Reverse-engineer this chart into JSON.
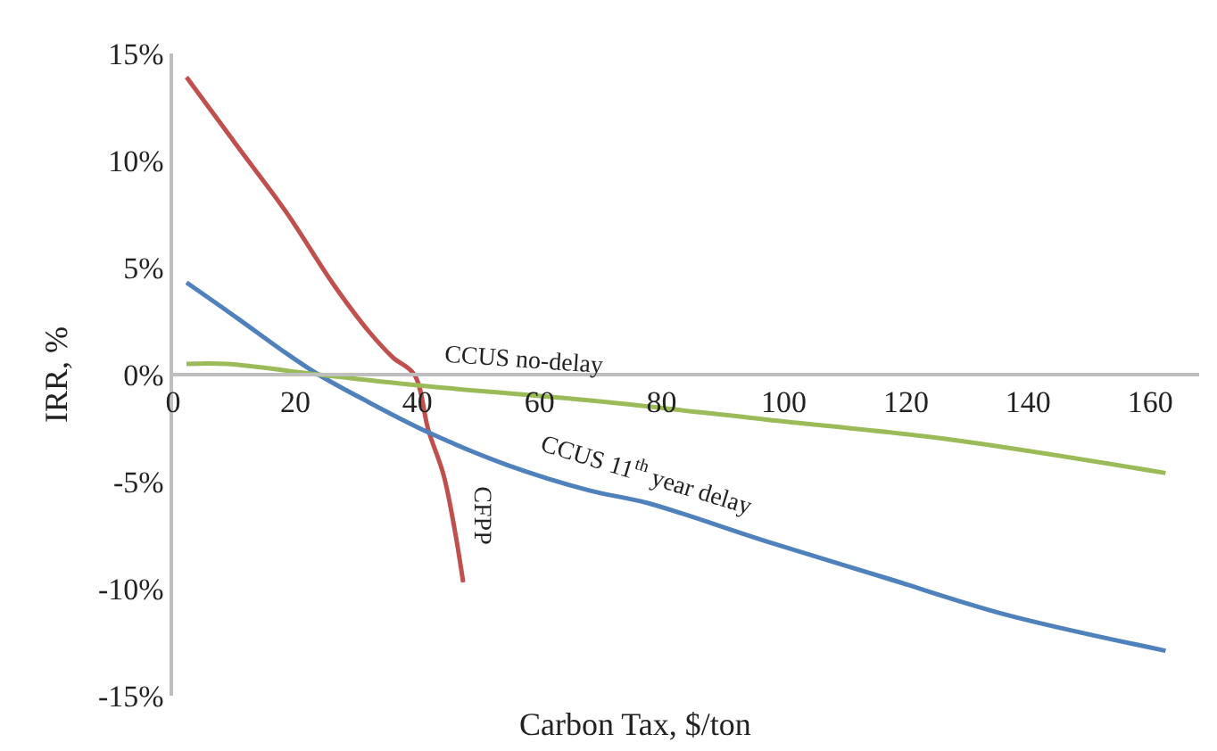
{
  "chart_data": {
    "type": "line",
    "xlabel": "Carbon Tax, $/ton",
    "ylabel": "IRR, %",
    "xlim": [
      0,
      168
    ],
    "xticks": [
      0,
      20,
      40,
      60,
      80,
      100,
      120,
      140,
      160
    ],
    "ylim": [
      -15,
      15
    ],
    "yticks": [
      {
        "value": 15,
        "label": "15%"
      },
      {
        "value": 10,
        "label": "10%"
      },
      {
        "value": 5,
        "label": "5%"
      },
      {
        "value": 0,
        "label": "0%"
      },
      {
        "value": -5,
        "label": "-5%"
      },
      {
        "value": -10,
        "label": "-10%"
      },
      {
        "value": -15,
        "label": "-15%"
      }
    ],
    "legend": false,
    "marker": "none",
    "line_style": "solid",
    "series": [
      {
        "name": "CFPP",
        "color": "#c0504d",
        "x": [
          2.2,
          10.7,
          18.5,
          26.3,
          32.1,
          36,
          39.5,
          41.8,
          44.3,
          46.2,
          47.5
        ],
        "values": [
          13.9,
          10.6,
          7.6,
          4.2,
          2.0,
          0.8,
          0,
          -2.6,
          -4.7,
          -7.4,
          -9.7
        ]
      },
      {
        "name": "CCUS 11$^{th}$ year delay",
        "color": "#4f81bd",
        "x": [
          2.2,
          10.7,
          17.5,
          23.8,
          32.1,
          41.8,
          54.5,
          68,
          77.7,
          97.2,
          116.7,
          136.2,
          162.5
        ],
        "values": [
          4.3,
          2.6,
          1.2,
          0,
          -1.3,
          -2.7,
          -4.2,
          -5.4,
          -6,
          -7.8,
          -9.5,
          -11.2,
          -12.9
        ]
      },
      {
        "name": "CCUS no-delay",
        "color": "#9bbb59",
        "x": [
          2.2,
          8.8,
          23.8,
          40,
          68,
          97.2,
          126.4,
          162.5
        ],
        "values": [
          0.5,
          0.5,
          0,
          -0.5,
          -1.2,
          -2.1,
          -3,
          -4.6
        ]
      }
    ]
  }
}
